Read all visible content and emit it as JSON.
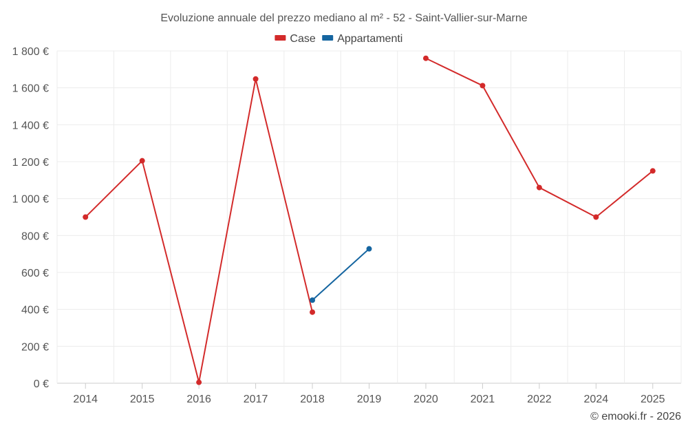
{
  "chart_data": {
    "type": "line",
    "title": "Evoluzione annuale del prezzo mediano al m² - 52 - Saint-Vallier-sur-Marne",
    "categories": [
      "2014",
      "2015",
      "2016",
      "2017",
      "2018",
      "2019",
      "2020",
      "2021",
      "2022",
      "2024",
      "2025"
    ],
    "series": [
      {
        "name": "Case",
        "color": "#d32a2a",
        "values": [
          900,
          1205,
          5,
          1648,
          385,
          null,
          1760,
          1612,
          1060,
          900,
          1150
        ]
      },
      {
        "name": "Appartamenti",
        "color": "#1565a0",
        "values": [
          null,
          null,
          null,
          null,
          450,
          728,
          null,
          null,
          null,
          null,
          null
        ]
      }
    ],
    "ylim": [
      0,
      1800
    ],
    "yticks": [
      0,
      200,
      400,
      600,
      800,
      1000,
      1200,
      1400,
      1600,
      1800
    ],
    "ytick_labels": [
      "0 €",
      "200 €",
      "400 €",
      "600 €",
      "800 €",
      "1 000 €",
      "1 200 €",
      "1 400 €",
      "1 600 €",
      "1 800 €"
    ],
    "xlabel": "",
    "ylabel": "",
    "grid": true,
    "legend_position": "top-center"
  },
  "credit": "© emooki.fr - 2026"
}
